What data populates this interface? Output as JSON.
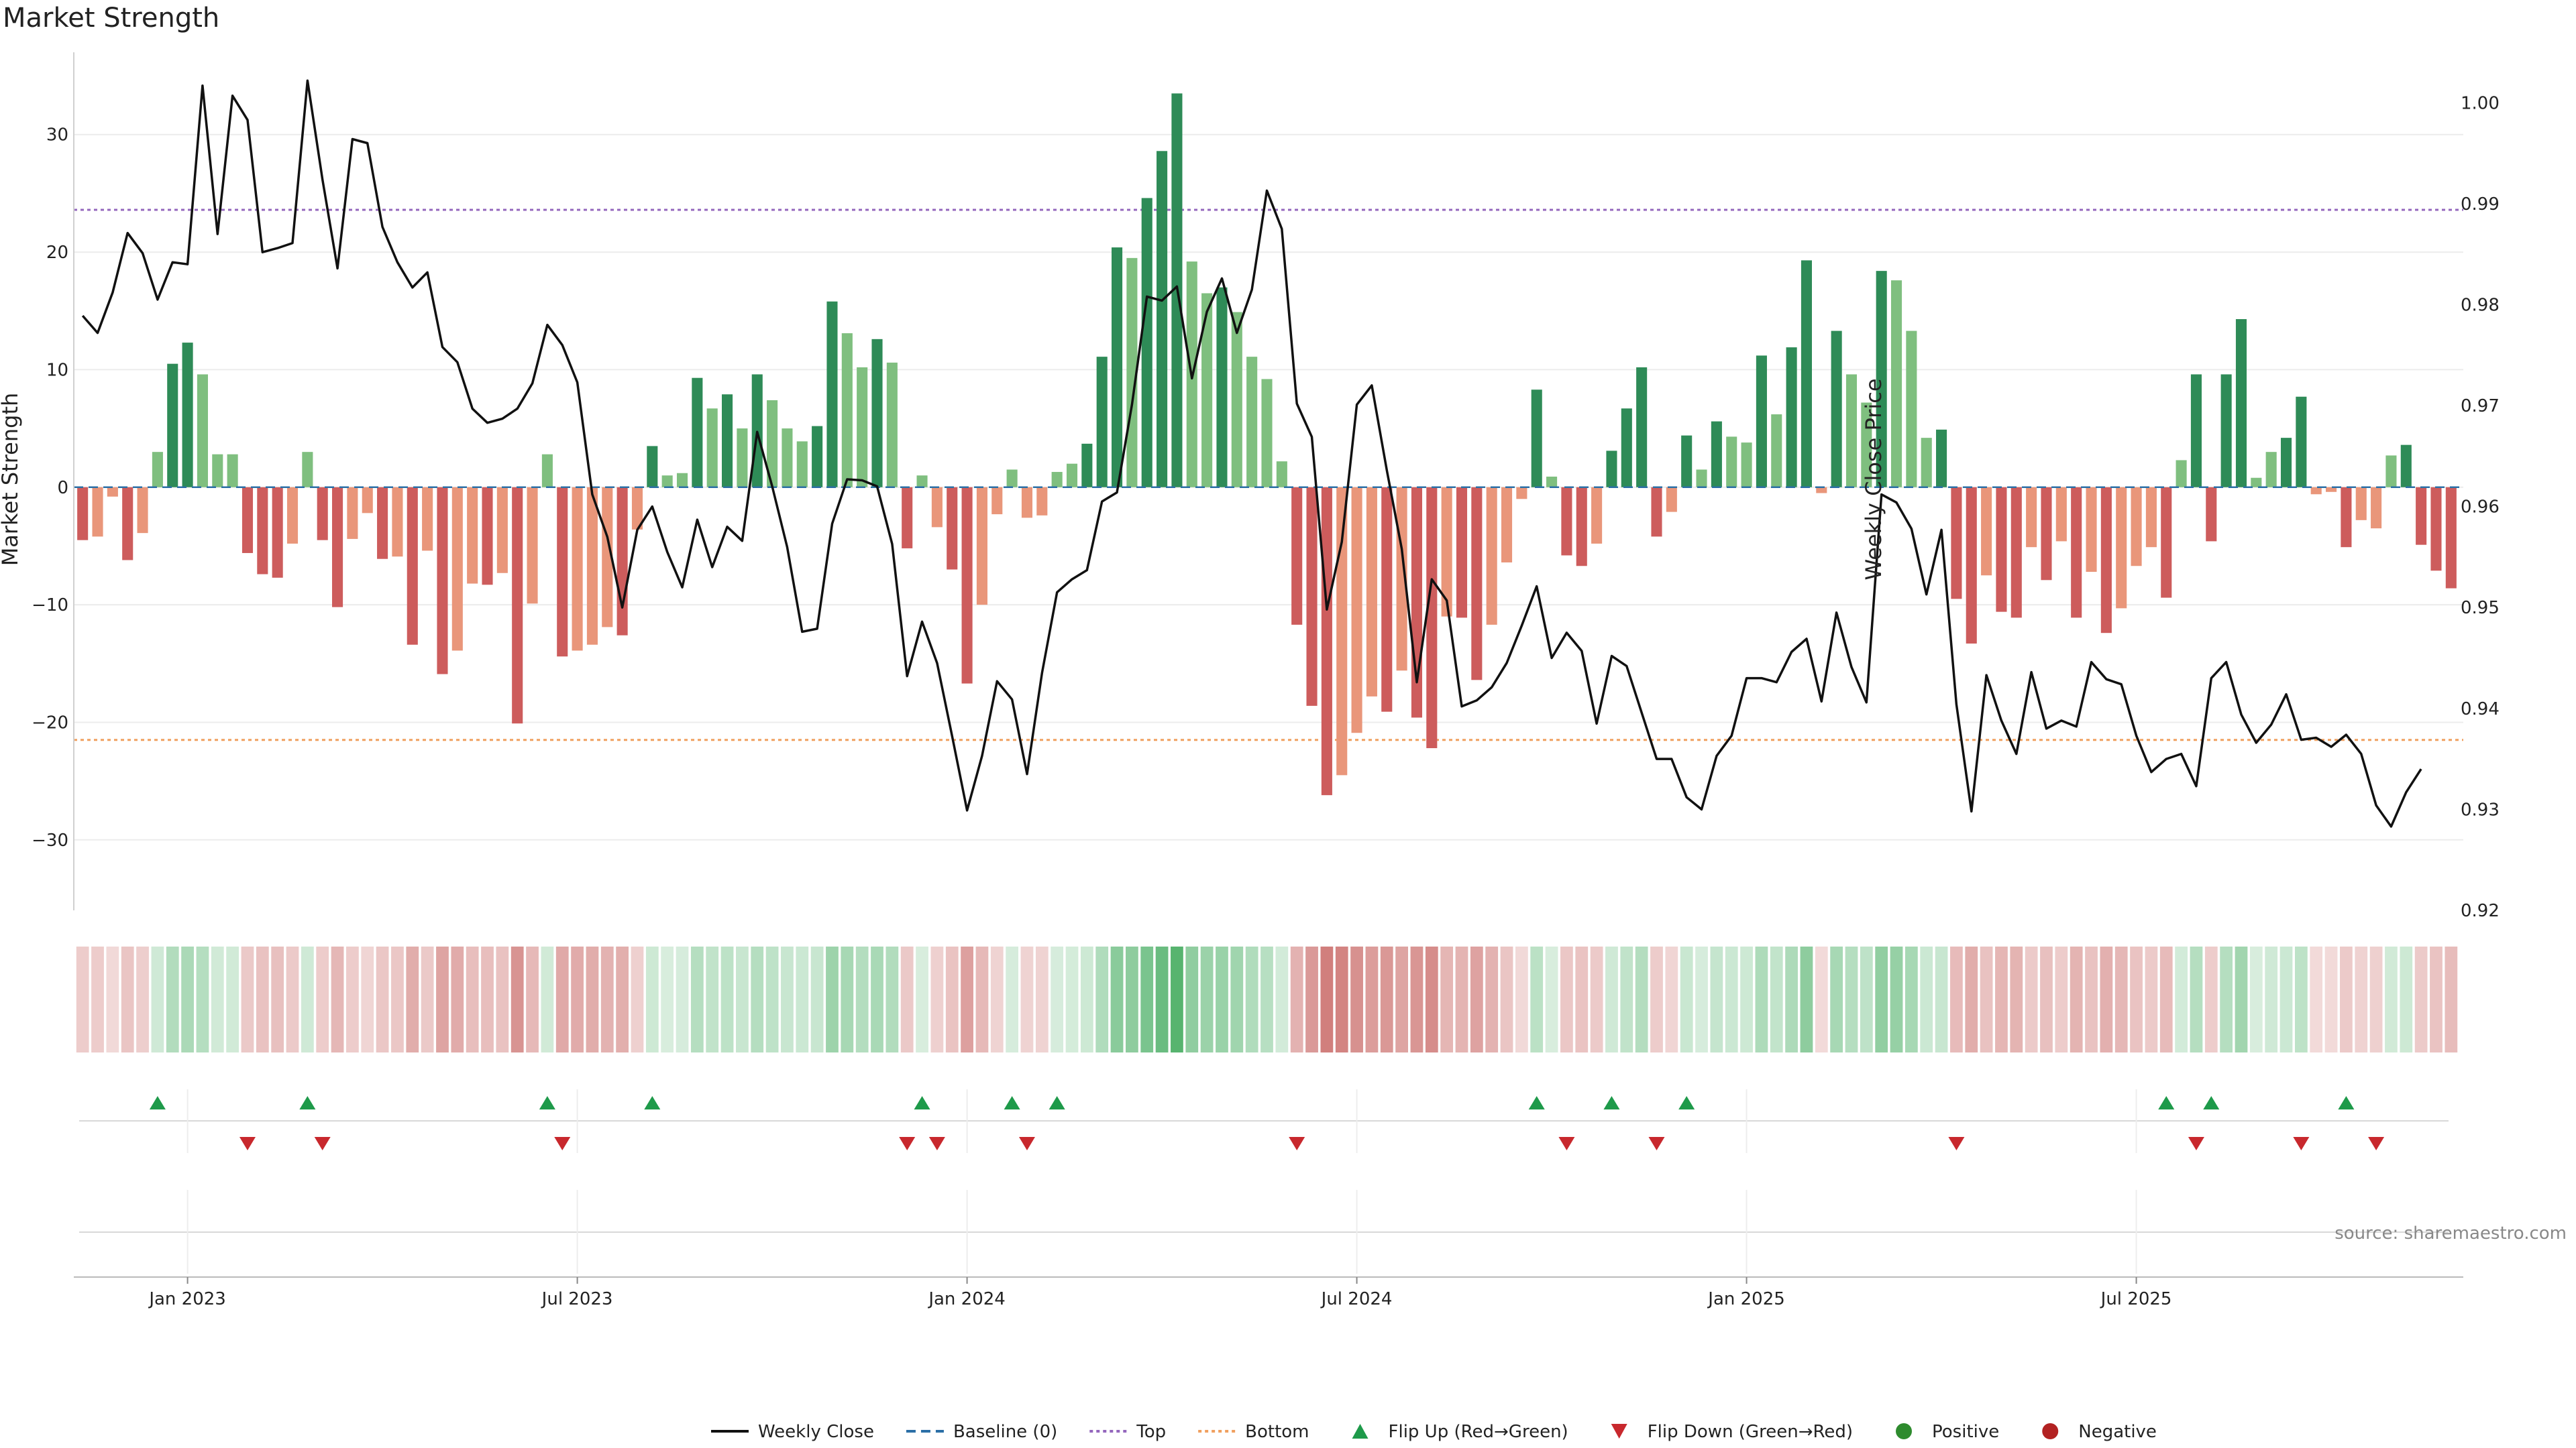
{
  "chart_data": {
    "type": "bar+line",
    "title": "Market Strength",
    "ylabel_left": "Market Strength",
    "ylabel_right": "Weekly Close Price",
    "ylim_left": [
      -36,
      37
    ],
    "ylim_right": [
      0.92,
      1.005
    ],
    "left_ticks": [
      30,
      20,
      10,
      0,
      -10,
      -20,
      -30
    ],
    "left_tick_labels": [
      "30",
      "20",
      "10",
      "0",
      "−10",
      "−20",
      "−30"
    ],
    "right_ticks": [
      1.0,
      0.99,
      0.98,
      0.97,
      0.96,
      0.95,
      0.94,
      0.93,
      0.92
    ],
    "right_tick_labels": [
      "1.00",
      "0.99",
      "0.98",
      "0.97",
      "0.96",
      "0.95",
      "0.94",
      "0.93",
      "0.92"
    ],
    "x_tick_labels": [
      "Jan 2023",
      "Jul 2023",
      "Jan 2024",
      "Jul 2024",
      "Jan 2025",
      "Jul 2025"
    ],
    "x_tick_weeks": [
      7.5,
      33.5,
      59.5,
      85.5,
      111.5,
      137.5
    ],
    "top_threshold": 23.6,
    "bottom_threshold": -21.5,
    "strength": [
      -4.5,
      -4.2,
      -0.8,
      -6.2,
      -3.9,
      3.0,
      10.5,
      12.3,
      9.6,
      2.8,
      2.8,
      -5.6,
      -7.4,
      -7.7,
      -4.8,
      3.0,
      -4.5,
      -10.2,
      -4.4,
      -2.2,
      -6.1,
      -5.9,
      -13.4,
      -5.4,
      -15.9,
      -13.9,
      -8.2,
      -8.3,
      -7.3,
      -20.1,
      -9.9,
      2.8,
      -14.4,
      -13.9,
      -13.4,
      -11.9,
      -12.6,
      -3.6,
      3.5,
      1.0,
      1.2,
      9.3,
      6.7,
      7.9,
      5.0,
      9.6,
      7.4,
      5.0,
      3.9,
      5.2,
      15.8,
      13.1,
      10.2,
      12.6,
      10.6,
      -5.2,
      1.0,
      -3.4,
      -7.0,
      -16.7,
      -10.0,
      -2.3,
      1.5,
      -2.6,
      -2.4,
      1.3,
      2.0,
      3.7,
      11.1,
      20.4,
      19.5,
      24.6,
      28.6,
      33.5,
      19.2,
      16.5,
      17.0,
      14.9,
      11.1,
      9.2,
      2.2,
      -11.7,
      -18.6,
      -26.2,
      -24.5,
      -20.9,
      -17.8,
      -19.1,
      -15.6,
      -19.6,
      -22.2,
      -11.0,
      -11.1,
      -16.4,
      -11.7,
      -6.4,
      -1.0,
      8.3,
      0.9,
      -5.8,
      -6.7,
      -4.8,
      3.1,
      6.7,
      10.2,
      -4.2,
      -2.1,
      4.4,
      1.5,
      5.6,
      4.3,
      3.8,
      11.2,
      6.2,
      11.9,
      19.3,
      -0.5,
      13.3,
      9.6,
      7.2,
      18.4,
      17.6,
      13.3,
      4.2,
      4.9,
      -9.5,
      -13.3,
      -7.5,
      -10.6,
      -11.1,
      -5.1,
      -7.9,
      -4.6,
      -11.1,
      -7.2,
      -12.4,
      -10.3,
      -6.7,
      -5.1,
      -9.4,
      2.3,
      9.6,
      -4.6,
      9.6,
      14.3,
      0.8,
      3.0,
      4.2,
      7.7,
      -0.6,
      -0.4,
      -5.1,
      -2.8,
      -3.5,
      2.7,
      3.6,
      -4.9,
      -7.1,
      -8.6
    ],
    "weekly_close": [
      0.9789,
      0.9772,
      0.9812,
      0.9871,
      0.9851,
      0.9805,
      0.9842,
      0.984,
      1.0017,
      0.987,
      1.0007,
      0.9983,
      0.9852,
      0.9856,
      0.9861,
      1.0022,
      0.9924,
      0.9836,
      0.9964,
      0.996,
      0.9877,
      0.9842,
      0.9817,
      0.9832,
      0.9758,
      0.9743,
      0.9697,
      0.9683,
      0.9687,
      0.9697,
      0.9722,
      0.978,
      0.976,
      0.9723,
      0.9612,
      0.957,
      0.95,
      0.9577,
      0.96,
      0.9555,
      0.952,
      0.9587,
      0.954,
      0.958,
      0.9566,
      0.9674,
      0.962,
      0.956,
      0.9476,
      0.9479,
      0.9583,
      0.9627,
      0.9626,
      0.962,
      0.9563,
      0.9432,
      0.9486,
      0.9445,
      0.9373,
      0.9299,
      0.9353,
      0.9427,
      0.9409,
      0.9335,
      0.9435,
      0.9515,
      0.9528,
      0.9537,
      0.9605,
      0.9614,
      0.9701,
      0.9808,
      0.9804,
      0.9818,
      0.9727,
      0.9793,
      0.9826,
      0.9772,
      0.9815,
      0.9913,
      0.9875,
      0.9702,
      0.9669,
      0.9498,
      0.9565,
      0.9701,
      0.972,
      0.9636,
      0.9558,
      0.9426,
      0.9528,
      0.9507,
      0.9402,
      0.9408,
      0.9421,
      0.9445,
      0.9482,
      0.9521,
      0.945,
      0.9475,
      0.9457,
      0.9385,
      0.9452,
      0.9442,
      0.9396,
      0.935,
      0.935,
      0.9312,
      0.93,
      0.9353,
      0.9373,
      0.943,
      0.943,
      0.9426,
      0.9456,
      0.9469,
      0.9407,
      0.9495,
      0.9441,
      0.9406,
      0.9612,
      0.9604,
      0.9578,
      0.9513,
      0.9577,
      0.9404,
      0.9298,
      0.9433,
      0.9388,
      0.9355,
      0.9436,
      0.938,
      0.9388,
      0.9382,
      0.9446,
      0.9429,
      0.9424,
      0.9373,
      0.9337,
      0.935,
      0.9355,
      0.9323,
      0.943,
      0.9446,
      0.9394,
      0.9366,
      0.9384,
      0.9414,
      0.9369,
      0.9371,
      0.9362,
      0.9374,
      0.9355,
      0.9304,
      0.9283,
      0.9317,
      0.934
    ],
    "heat_bins": [
      "rose-light",
      "green-pale",
      "rose-medium",
      "green-medium",
      "red-strong",
      "green-strong"
    ],
    "flip_up_weeks": [
      5,
      15,
      31,
      38,
      56,
      62,
      65,
      97,
      102,
      107,
      139,
      142,
      151
    ],
    "flip_down_weeks": [
      11,
      16,
      32,
      55,
      57,
      63,
      81,
      99,
      105,
      125,
      141,
      148,
      153
    ],
    "source": "source: sharemaestro.com",
    "legend": [
      {
        "label": "Weekly Close",
        "kind": "line-solid",
        "color": "#111111"
      },
      {
        "label": "Baseline (0)",
        "kind": "line-dashed",
        "color": "#2b6fa6"
      },
      {
        "label": "Top",
        "kind": "line-dotted",
        "color": "#9467bd"
      },
      {
        "label": "Bottom",
        "kind": "line-dotted",
        "color": "#f0a060"
      },
      {
        "label": "Flip Up (Red→Green)",
        "kind": "triangle-up",
        "color": "#1e9a4a"
      },
      {
        "label": "Flip Down (Green→Red)",
        "kind": "triangle-down",
        "color": "#c8282d"
      },
      {
        "label": "Positive",
        "kind": "circle",
        "color": "#2e8b2e"
      },
      {
        "label": "Negative",
        "kind": "circle",
        "color": "#b22222"
      }
    ],
    "colors": {
      "pos_strong": "#2e8b57",
      "pos_weak": "#7fbf7f",
      "neg_strong": "#cd5c5c",
      "neg_weak": "#e9967a",
      "price_line": "#111111",
      "baseline": "#2b6fa6",
      "top_line": "#9467bd",
      "bottom_line": "#f0a060",
      "flip_up": "#1e9a4a",
      "flip_down": "#c8282d"
    }
  }
}
